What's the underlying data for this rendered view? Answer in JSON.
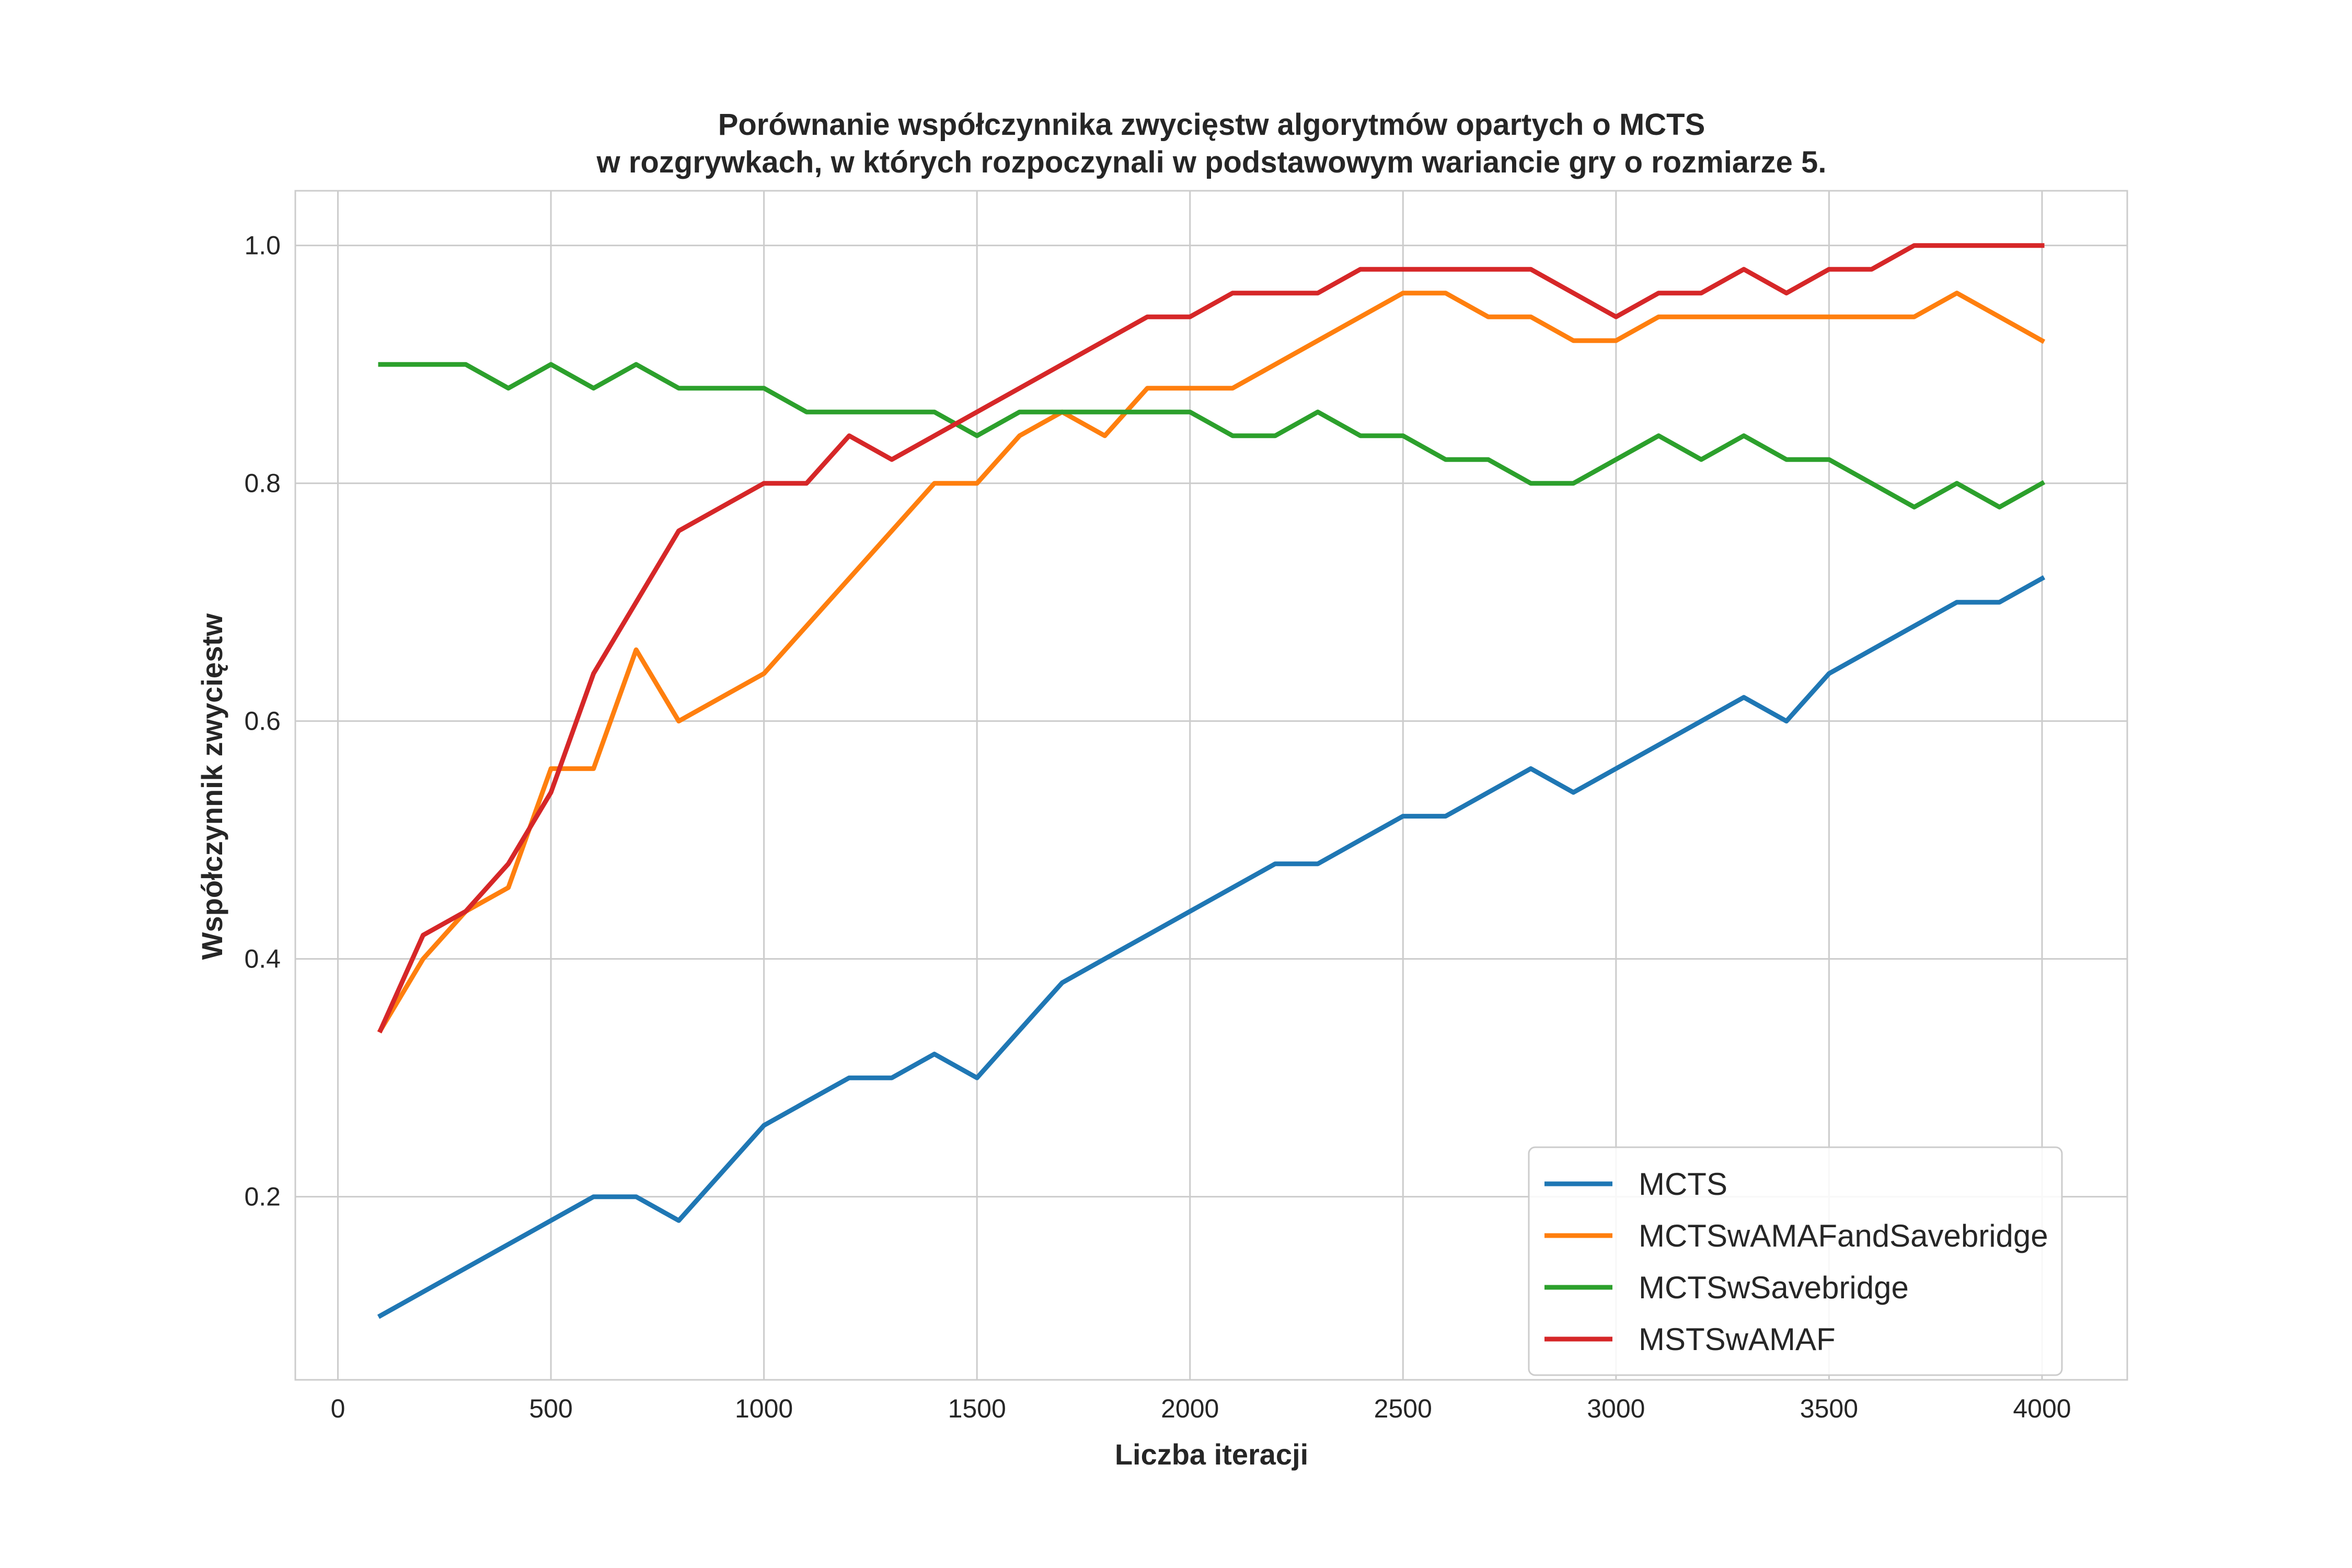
{
  "chart_data": {
    "type": "line",
    "title": [
      "Porównanie współczynnika zwycięstw algorytmów opartych o MCTS",
      "w rozgrywkach, w których rozpoczynali w podstawowym wariancie gry o rozmiarze 5."
    ],
    "xlabel": "Liczba iteracji",
    "ylabel": "Współczynnik zwycięstw",
    "xlim": [
      -100,
      4200
    ],
    "ylim": [
      0.046,
      1.046
    ],
    "xticks": [
      0,
      500,
      1000,
      1500,
      2000,
      2500,
      3000,
      3500,
      4000
    ],
    "xtick_labels": [
      "0",
      "500",
      "1000",
      "1500",
      "2000",
      "2500",
      "3000",
      "3500",
      "4000"
    ],
    "yticks": [
      0.2,
      0.4,
      0.6,
      0.8,
      1.0
    ],
    "ytick_labels": [
      "0.2",
      "0.4",
      "0.6",
      "0.8",
      "1.0"
    ],
    "grid": true,
    "legend_position": "lower-right",
    "x": [
      100,
      200,
      300,
      400,
      500,
      600,
      700,
      800,
      900,
      1000,
      1100,
      1200,
      1300,
      1400,
      1500,
      1600,
      1700,
      1800,
      1900,
      2000,
      2100,
      2200,
      2300,
      2400,
      2500,
      2600,
      2700,
      2800,
      2900,
      3000,
      3100,
      3200,
      3300,
      3400,
      3500,
      3600,
      3700,
      3800,
      3900,
      4000
    ],
    "series": [
      {
        "name": "MCTS",
        "color": "#1f77b4",
        "values": [
          0.1,
          0.12,
          0.14,
          0.16,
          0.18,
          0.2,
          0.2,
          0.18,
          0.22,
          0.26,
          0.28,
          0.3,
          0.3,
          0.32,
          0.3,
          0.34,
          0.38,
          0.4,
          0.42,
          0.44,
          0.46,
          0.48,
          0.48,
          0.5,
          0.52,
          0.52,
          0.54,
          0.56,
          0.54,
          0.56,
          0.58,
          0.6,
          0.62,
          0.6,
          0.64,
          0.66,
          0.68,
          0.7,
          0.7,
          0.72
        ]
      },
      {
        "name": "MCTSwAMAFandSavebridge",
        "color": "#ff7f0e",
        "values": [
          0.34,
          0.4,
          0.44,
          0.46,
          0.56,
          0.56,
          0.66,
          0.6,
          0.62,
          0.64,
          0.68,
          0.72,
          0.76,
          0.8,
          0.8,
          0.84,
          0.86,
          0.84,
          0.88,
          0.88,
          0.88,
          0.9,
          0.92,
          0.94,
          0.96,
          0.96,
          0.94,
          0.94,
          0.92,
          0.92,
          0.94,
          0.94,
          0.94,
          0.94,
          0.94,
          0.94,
          0.94,
          0.96,
          0.94,
          0.92
        ]
      },
      {
        "name": "MCTSwSavebridge",
        "color": "#2ca02c",
        "values": [
          0.9,
          0.9,
          0.9,
          0.88,
          0.9,
          0.88,
          0.9,
          0.88,
          0.88,
          0.88,
          0.86,
          0.86,
          0.86,
          0.86,
          0.84,
          0.86,
          0.86,
          0.86,
          0.86,
          0.86,
          0.84,
          0.84,
          0.86,
          0.84,
          0.84,
          0.82,
          0.82,
          0.8,
          0.8,
          0.82,
          0.84,
          0.82,
          0.84,
          0.82,
          0.82,
          0.8,
          0.78,
          0.8,
          0.78,
          0.8
        ]
      },
      {
        "name": "MSTSwAMAF",
        "color": "#d62728",
        "values": [
          0.34,
          0.42,
          0.44,
          0.48,
          0.54,
          0.64,
          0.7,
          0.76,
          0.78,
          0.8,
          0.8,
          0.84,
          0.82,
          0.84,
          0.86,
          0.88,
          0.9,
          0.92,
          0.94,
          0.94,
          0.96,
          0.96,
          0.96,
          0.98,
          0.98,
          0.98,
          0.98,
          0.98,
          0.96,
          0.94,
          0.96,
          0.96,
          0.98,
          0.96,
          0.98,
          0.98,
          1.0,
          1.0,
          1.0,
          1.0
        ]
      }
    ]
  }
}
